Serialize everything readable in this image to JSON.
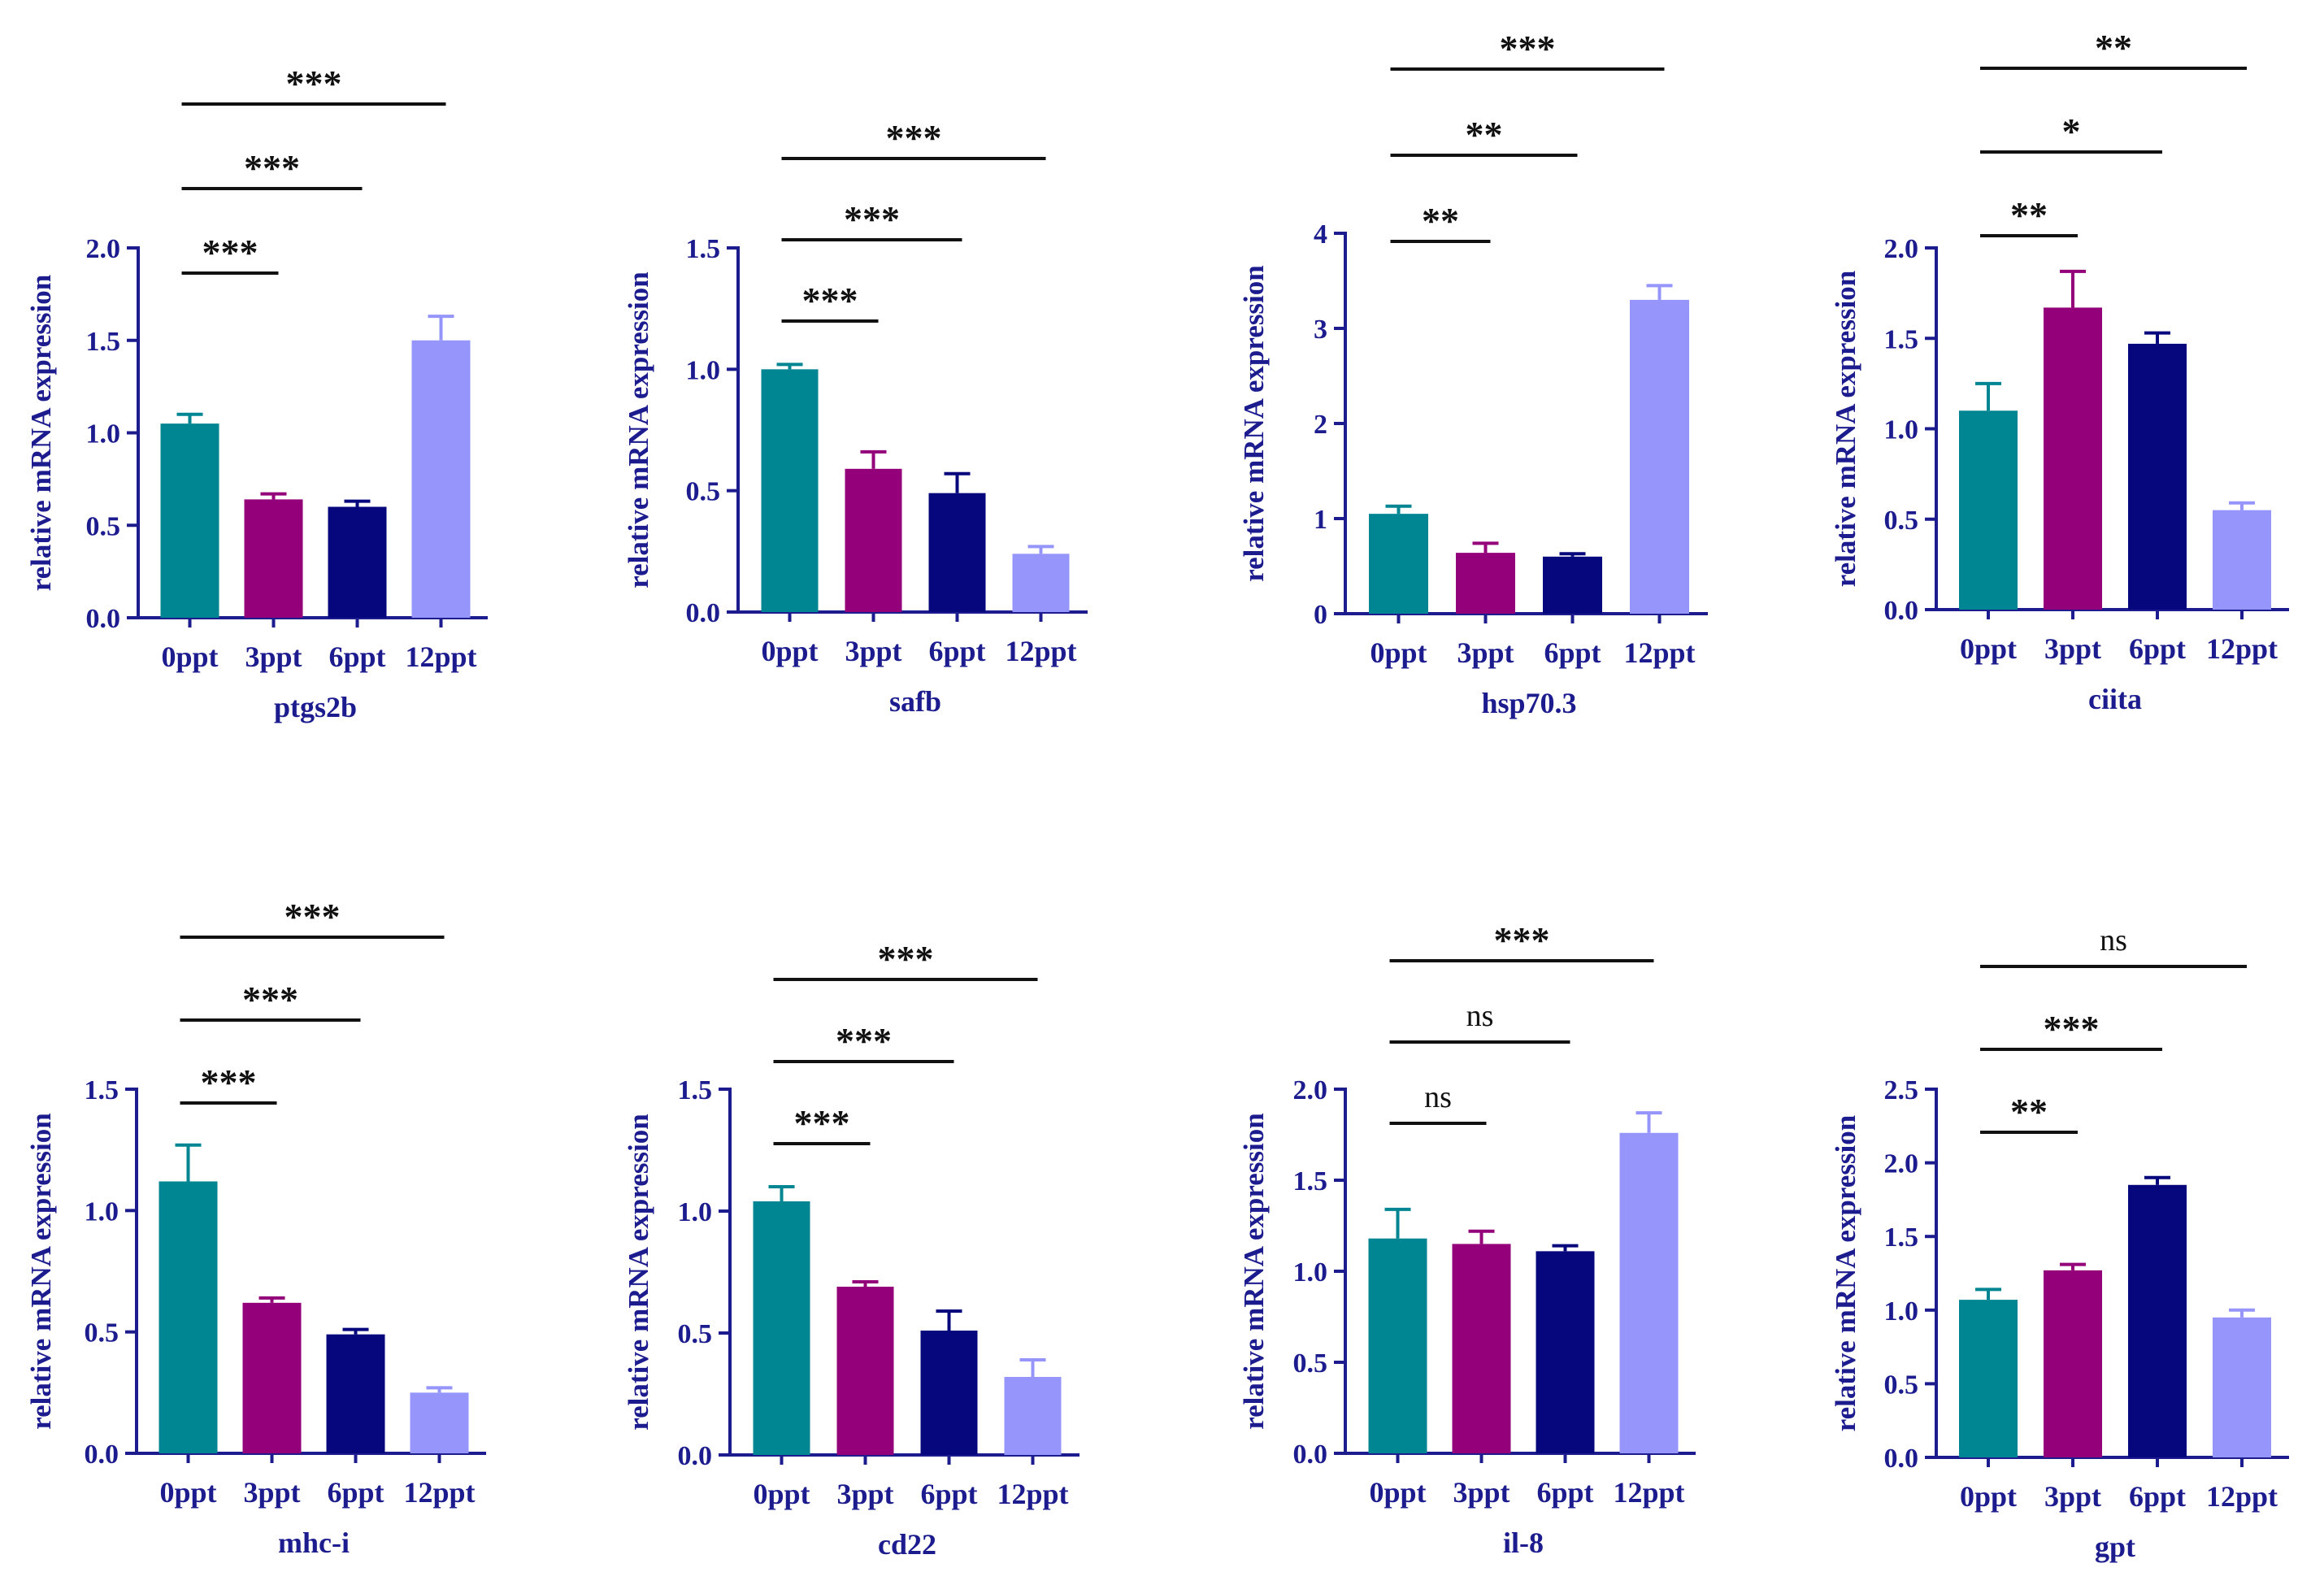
{
  "figure": {
    "y_axis_label": "relative mRNA expression"
  },
  "colors": {
    "0ppt": "#008592",
    "3ppt": "#930079",
    "6ppt": "#07077d",
    "12ppt": "#9595fb",
    "axis": "#1c1c8f",
    "significance": "#111111"
  },
  "chart_data": [
    {
      "type": "bar",
      "title": "ptgs2b",
      "xlabel": "ptgs2b",
      "ylabel": "relative mRNA expression",
      "categories": [
        "0ppt",
        "3ppt",
        "6ppt",
        "12ppt"
      ],
      "values": [
        1.05,
        0.64,
        0.6,
        1.5
      ],
      "errors": [
        0.05,
        0.03,
        0.03,
        0.13
      ],
      "ylim": [
        0,
        2.0
      ],
      "yticks": [
        0.0,
        0.5,
        1.0,
        1.5,
        2.0
      ],
      "tick_labels": [
        "0.0",
        "0.5",
        "1.0",
        "1.5",
        "2.0"
      ],
      "significance": [
        {
          "from": 0,
          "to": 1,
          "label": "***"
        },
        {
          "from": 0,
          "to": 2,
          "label": "***"
        },
        {
          "from": 0,
          "to": 3,
          "label": "***"
        }
      ]
    },
    {
      "type": "bar",
      "title": "safb",
      "xlabel": "safb",
      "ylabel": "relative mRNA expression",
      "categories": [
        "0ppt",
        "3ppt",
        "6ppt",
        "12ppt"
      ],
      "values": [
        1.0,
        0.59,
        0.49,
        0.24
      ],
      "errors": [
        0.02,
        0.07,
        0.08,
        0.03
      ],
      "ylim": [
        0,
        1.5
      ],
      "yticks": [
        0.0,
        0.5,
        1.0,
        1.5
      ],
      "tick_labels": [
        "0.0",
        "0.5",
        "1.0",
        "1.5"
      ],
      "significance": [
        {
          "from": 0,
          "to": 1,
          "label": "***"
        },
        {
          "from": 0,
          "to": 2,
          "label": "***"
        },
        {
          "from": 0,
          "to": 3,
          "label": "***"
        }
      ]
    },
    {
      "type": "bar",
      "title": "hsp70.3",
      "xlabel": "hsp70.3",
      "ylabel": "relative mRNA expression",
      "categories": [
        "0ppt",
        "3ppt",
        "6ppt",
        "12ppt"
      ],
      "values": [
        1.05,
        0.64,
        0.6,
        3.3
      ],
      "errors": [
        0.08,
        0.1,
        0.03,
        0.15
      ],
      "ylim": [
        0,
        4
      ],
      "yticks": [
        0,
        1,
        2,
        3,
        4
      ],
      "tick_labels": [
        "0",
        "1",
        "2",
        "3",
        "4"
      ],
      "significance": [
        {
          "from": 0,
          "to": 1,
          "label": "**"
        },
        {
          "from": 0,
          "to": 2,
          "label": "**"
        },
        {
          "from": 0,
          "to": 3,
          "label": "***"
        }
      ]
    },
    {
      "type": "bar",
      "title": "ciita",
      "xlabel": "ciita",
      "ylabel": "relative mRNA expression",
      "categories": [
        "0ppt",
        "3ppt",
        "6ppt",
        "12ppt"
      ],
      "values": [
        1.1,
        1.67,
        1.47,
        0.55
      ],
      "errors": [
        0.15,
        0.2,
        0.06,
        0.04
      ],
      "ylim": [
        0,
        2.0
      ],
      "yticks": [
        0.0,
        0.5,
        1.0,
        1.5,
        2.0
      ],
      "tick_labels": [
        "0.0",
        "0.5",
        "1.0",
        "1.5",
        "2.0"
      ],
      "significance": [
        {
          "from": 0,
          "to": 1,
          "label": "**"
        },
        {
          "from": 0,
          "to": 2,
          "label": "*"
        },
        {
          "from": 0,
          "to": 3,
          "label": "**"
        }
      ]
    },
    {
      "type": "bar",
      "title": "mhc-i",
      "xlabel": "mhc-i",
      "ylabel": "relative mRNA expression",
      "categories": [
        "0ppt",
        "3ppt",
        "6ppt",
        "12ppt"
      ],
      "values": [
        1.12,
        0.62,
        0.49,
        0.25
      ],
      "errors": [
        0.15,
        0.02,
        0.02,
        0.02
      ],
      "ylim": [
        0,
        1.5
      ],
      "yticks": [
        0.0,
        0.5,
        1.0,
        1.5
      ],
      "tick_labels": [
        "0.0",
        "0.5",
        "1.0",
        "1.5"
      ],
      "significance": [
        {
          "from": 0,
          "to": 1,
          "label": "***"
        },
        {
          "from": 0,
          "to": 2,
          "label": "***"
        },
        {
          "from": 0,
          "to": 3,
          "label": "***"
        }
      ]
    },
    {
      "type": "bar",
      "title": "cd22",
      "xlabel": "cd22",
      "ylabel": "relative mRNA expression",
      "categories": [
        "0ppt",
        "3ppt",
        "6ppt",
        "12ppt"
      ],
      "values": [
        1.04,
        0.69,
        0.51,
        0.32
      ],
      "errors": [
        0.06,
        0.02,
        0.08,
        0.07
      ],
      "ylim": [
        0,
        1.5
      ],
      "yticks": [
        0.0,
        0.5,
        1.0,
        1.5
      ],
      "tick_labels": [
        "0.0",
        "0.5",
        "1.0",
        "1.5"
      ],
      "significance": [
        {
          "from": 0,
          "to": 1,
          "label": "***"
        },
        {
          "from": 0,
          "to": 2,
          "label": "***"
        },
        {
          "from": 0,
          "to": 3,
          "label": "***"
        }
      ]
    },
    {
      "type": "bar",
      "title": "il-8",
      "xlabel": "il-8",
      "ylabel": "relative mRNA expression",
      "categories": [
        "0ppt",
        "3ppt",
        "6ppt",
        "12ppt"
      ],
      "values": [
        1.18,
        1.15,
        1.11,
        1.76
      ],
      "errors": [
        0.16,
        0.07,
        0.03,
        0.11
      ],
      "ylim": [
        0,
        2.0
      ],
      "yticks": [
        0.0,
        0.5,
        1.0,
        1.5,
        2.0
      ],
      "tick_labels": [
        "0.0",
        "0.5",
        "1.0",
        "1.5",
        "2.0"
      ],
      "significance": [
        {
          "from": 0,
          "to": 1,
          "label": "ns"
        },
        {
          "from": 0,
          "to": 2,
          "label": "ns"
        },
        {
          "from": 0,
          "to": 3,
          "label": "***"
        }
      ]
    },
    {
      "type": "bar",
      "title": "gpt",
      "xlabel": "gpt",
      "ylabel": "relative mRNA expression",
      "categories": [
        "0ppt",
        "3ppt",
        "6ppt",
        "12ppt"
      ],
      "values": [
        1.07,
        1.27,
        1.85,
        0.95
      ],
      "errors": [
        0.07,
        0.04,
        0.05,
        0.05
      ],
      "ylim": [
        0,
        2.5
      ],
      "yticks": [
        0.0,
        0.5,
        1.0,
        1.5,
        2.0,
        2.5
      ],
      "tick_labels": [
        "0.0",
        "0.5",
        "1.0",
        "1.5",
        "2.0",
        "2.5"
      ],
      "significance": [
        {
          "from": 0,
          "to": 1,
          "label": "**"
        },
        {
          "from": 0,
          "to": 2,
          "label": "***"
        },
        {
          "from": 0,
          "to": 3,
          "label": "ns"
        }
      ]
    }
  ]
}
